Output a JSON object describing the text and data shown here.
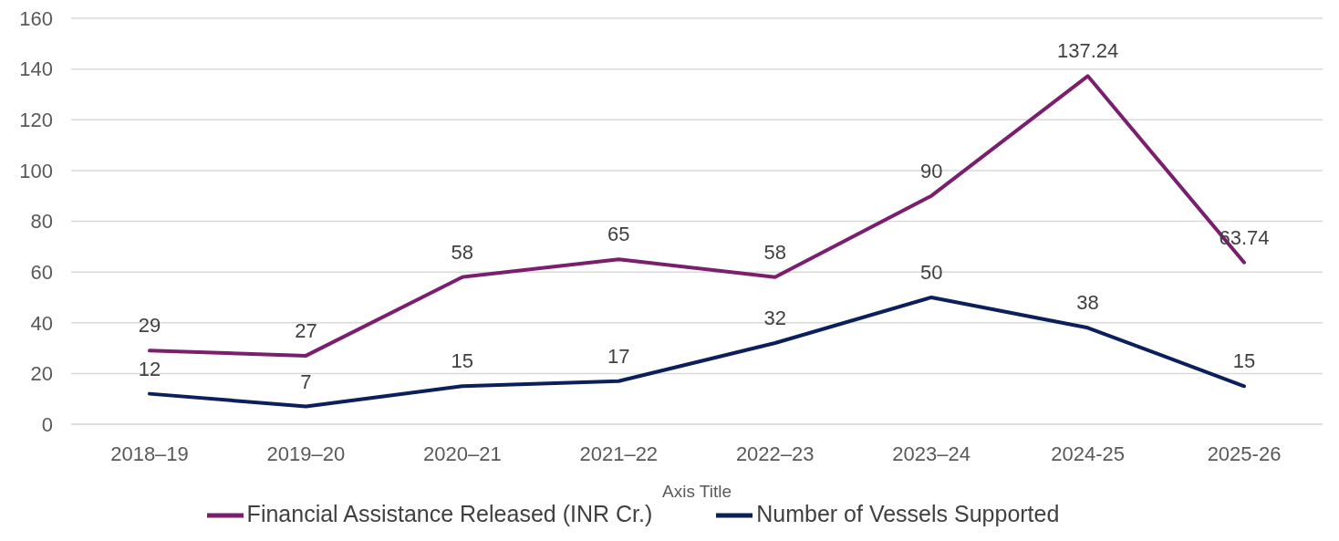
{
  "chart_data": {
    "type": "line",
    "xlabel": "Axis Title",
    "categories": [
      "2018–19",
      "2019–20",
      "2020–21",
      "2021–22",
      "2022–23",
      "2023–24",
      "2024-25",
      "2025-26"
    ],
    "series": [
      {
        "name": "Financial Assistance Released (INR Cr.)",
        "color": "#7b1e6e",
        "values": [
          29,
          27,
          58,
          65,
          58,
          90,
          137.24,
          63.74
        ]
      },
      {
        "name": "Number of Vessels Supported",
        "color": "#0b1f5c",
        "values": [
          12,
          7,
          15,
          17,
          32,
          50,
          38,
          15
        ]
      }
    ],
    "ylim": [
      0,
      160
    ],
    "yticks": [
      0,
      20,
      40,
      60,
      80,
      100,
      120,
      140,
      160
    ],
    "grid": "y",
    "legend": "bottom",
    "data_labels": true,
    "marker": "none",
    "line_style": "solid"
  }
}
